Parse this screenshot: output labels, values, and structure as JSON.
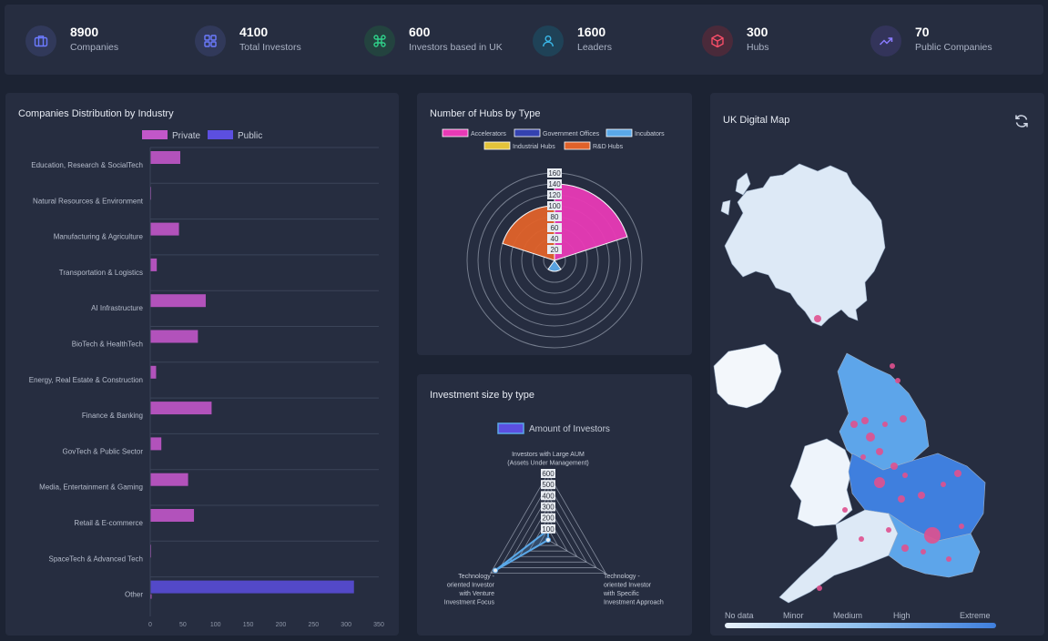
{
  "stats": [
    {
      "value": "8900",
      "label": "Companies",
      "icon": "briefcase-icon",
      "color": "#6c7bff",
      "bg": "#31395a"
    },
    {
      "value": "4100",
      "label": "Total Investors",
      "icon": "grid-icon",
      "color": "#6c7bff",
      "bg": "#31395a"
    },
    {
      "value": "600",
      "label": "Investors based in UK",
      "icon": "command-icon",
      "color": "#2fd28a",
      "bg": "#23433f"
    },
    {
      "value": "1600",
      "label": "Leaders",
      "icon": "user-icon",
      "color": "#3ab7e8",
      "bg": "#1f4257"
    },
    {
      "value": "300",
      "label": "Hubs",
      "icon": "cube-icon",
      "color": "#ff4f6a",
      "bg": "#4a2a3a"
    },
    {
      "value": "70",
      "label": "Public Companies",
      "icon": "trend-up-icon",
      "color": "#8a7bff",
      "bg": "#33345a"
    }
  ],
  "colors": {
    "private": "#c257c9",
    "public": "#5c4fe0",
    "accelerators": "#e83ab6",
    "government": "#3442b0",
    "incubators": "#5aa8e8",
    "industrial": "#e3c33a",
    "rnd": "#e0622a",
    "radar": "#5aa8e8"
  },
  "chart_data": [
    {
      "type": "bar",
      "title": "Companies Distribution by Industry",
      "orientation": "horizontal",
      "categories": [
        "Education, Research & SocialTech",
        "Natural Resources & Environment",
        "Manufacturing & Agriculture",
        "Transportation & Logistics",
        "AI Infrastructure",
        "BioTech & HealthTech",
        "Energy, Real Estate & Construction",
        "Finance & Banking",
        "GovTech & Public Sector",
        "Media, Entertainment & Gaming",
        "Retail & E-commerce",
        "SpaceTech & Advanced Tech",
        "Other"
      ],
      "series": [
        {
          "name": "Private",
          "values": [
            46,
            1,
            44,
            10,
            85,
            73,
            9,
            94,
            17,
            58,
            67,
            0,
            2
          ]
        },
        {
          "name": "Public",
          "values": [
            0,
            0,
            0,
            0,
            0,
            0,
            0,
            0,
            0,
            0,
            0,
            0,
            312
          ]
        }
      ],
      "xticks": [
        "0",
        "50",
        "100",
        "150",
        "200",
        "250",
        "300",
        "350"
      ],
      "xlim": [
        0,
        350
      ],
      "legend": "top"
    },
    {
      "type": "polar-area",
      "title": "Number of Hubs by Type",
      "categories": [
        "Accelerators",
        "Government Offices",
        "Incubators",
        "Industrial Hubs",
        "R&D Hubs"
      ],
      "values": [
        140,
        0,
        20,
        0,
        100
      ],
      "rticks": [
        "20",
        "40",
        "60",
        "80",
        "100",
        "120",
        "140",
        "160"
      ],
      "rlim": [
        0,
        160
      ],
      "legend": "top"
    },
    {
      "type": "radar",
      "title": "Investment size by type",
      "series_name": "Amount of Investors",
      "axes": [
        "Investors with Large AUM (Assets Under Management)",
        "Technology - oriented Investor with Specific Investment Approach",
        "Technology - oriented Investor with Venture Investment Focus"
      ],
      "values": [
        90,
        0,
        550
      ],
      "rticks": [
        "100",
        "200",
        "300",
        "400",
        "500",
        "600"
      ],
      "rlim": [
        0,
        600
      ],
      "legend": "top"
    }
  ],
  "map": {
    "title": "UK Digital Map",
    "legend_labels": [
      "No data",
      "Minor",
      "Medium",
      "High",
      "Extreme"
    ],
    "refresh_icon": "refresh-icon"
  }
}
